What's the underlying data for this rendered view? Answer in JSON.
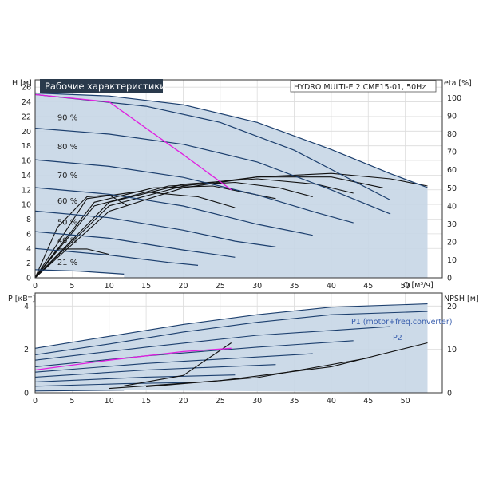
{
  "chart_data": [
    {
      "type": "line",
      "title": "Рабочие характеристики",
      "subtitle": "HYDRO MULTI-E 2 CME15-01, 50Hz",
      "xlabel": "Q [м³/ч]",
      "ylabel": "H [м]",
      "y2label": "eta [%]",
      "xlim": [
        0,
        55
      ],
      "ylim": [
        0,
        27
      ],
      "y2lim": [
        0,
        110
      ],
      "x_ticks": [
        0,
        5,
        10,
        15,
        20,
        25,
        30,
        35,
        40,
        45,
        50
      ],
      "y_ticks": [
        0,
        2,
        4,
        6,
        8,
        10,
        12,
        14,
        16,
        18,
        20,
        22,
        24,
        26
      ],
      "y2_ticks": [
        0,
        10,
        20,
        30,
        40,
        50,
        60,
        70,
        80,
        90,
        100
      ],
      "grid": true,
      "curve_labels": [
        "100 %",
        "90 %",
        "80 %",
        "70 %",
        "60 %",
        "50 %",
        "40 %",
        "21 %"
      ],
      "head_curves": [
        {
          "speed": 100,
          "points": [
            [
              0,
              25.2
            ],
            [
              10,
              24.8
            ],
            [
              20,
              23.6
            ],
            [
              30,
              21.2
            ],
            [
              40,
              17.5
            ],
            [
              48,
              14.2
            ],
            [
              53,
              12.3
            ]
          ]
        },
        {
          "speed": 100,
          "points": [
            [
              0,
              25.0
            ],
            [
              15,
              23.4
            ],
            [
              25,
              21.2
            ],
            [
              35,
              17.4
            ],
            [
              48,
              10.6
            ]
          ]
        },
        {
          "speed": 90,
          "points": [
            [
              0,
              20.4
            ],
            [
              10,
              19.6
            ],
            [
              20,
              18.2
            ],
            [
              30,
              15.8
            ],
            [
              40,
              12.0
            ],
            [
              48,
              8.7
            ]
          ]
        },
        {
          "speed": 80,
          "points": [
            [
              0,
              16.1
            ],
            [
              10,
              15.2
            ],
            [
              20,
              13.7
            ],
            [
              30,
              11.3
            ],
            [
              38,
              8.9
            ],
            [
              43,
              7.5
            ]
          ]
        },
        {
          "speed": 70,
          "points": [
            [
              0,
              12.3
            ],
            [
              10,
              11.4
            ],
            [
              20,
              9.8
            ],
            [
              30,
              7.3
            ],
            [
              37.5,
              5.8
            ]
          ]
        },
        {
          "speed": 60,
          "points": [
            [
              0,
              9.1
            ],
            [
              10,
              8.2
            ],
            [
              20,
              6.5
            ],
            [
              27,
              5.0
            ],
            [
              32.5,
              4.2
            ]
          ]
        },
        {
          "speed": 50,
          "points": [
            [
              0,
              6.3
            ],
            [
              10,
              5.4
            ],
            [
              20,
              3.8
            ],
            [
              27,
              2.8
            ]
          ]
        },
        {
          "speed": 40,
          "points": [
            [
              0,
              4.0
            ],
            [
              10,
              3.1
            ],
            [
              18,
              2.1
            ],
            [
              22,
              1.7
            ]
          ]
        },
        {
          "speed": 21,
          "points": [
            [
              0,
              1.1
            ],
            [
              6,
              0.9
            ],
            [
              12,
              0.5
            ]
          ]
        }
      ],
      "efficiency_curves": [
        {
          "points": [
            [
              0,
              0
            ],
            [
              10,
              37
            ],
            [
              20,
              50
            ],
            [
              30,
              56
            ],
            [
              40,
              58
            ],
            [
              48,
              55
            ],
            [
              53,
              51
            ]
          ]
        },
        {
          "points": [
            [
              0,
              0
            ],
            [
              10,
              40
            ],
            [
              20,
              51
            ],
            [
              30,
              56
            ],
            [
              40,
              56
            ],
            [
              47,
              50
            ]
          ]
        },
        {
          "points": [
            [
              0,
              0
            ],
            [
              10,
              42
            ],
            [
              20,
              52
            ],
            [
              30,
              55
            ],
            [
              38,
              52
            ],
            [
              43,
              47
            ]
          ]
        },
        {
          "points": [
            [
              0,
              0
            ],
            [
              8,
              40
            ],
            [
              18,
              51
            ],
            [
              27,
              53
            ],
            [
              33,
              50
            ],
            [
              37.5,
              45
            ]
          ]
        },
        {
          "points": [
            [
              0,
              0
            ],
            [
              8,
              42
            ],
            [
              16,
              50
            ],
            [
              24,
              51
            ],
            [
              32.5,
              44
            ]
          ]
        },
        {
          "points": [
            [
              0,
              0
            ],
            [
              7,
              44
            ],
            [
              14,
              48
            ],
            [
              22,
              45
            ],
            [
              27,
              39
            ]
          ]
        },
        {
          "points": [
            [
              0,
              0
            ],
            [
              3,
              28
            ],
            [
              7,
              45
            ],
            [
              10,
              46
            ],
            [
              12.5,
              40
            ]
          ]
        },
        {
          "points": [
            [
              0,
              0
            ],
            [
              3,
              16
            ],
            [
              7,
              16
            ],
            [
              10,
              13
            ]
          ]
        }
      ],
      "highlight_curve": {
        "color": "#e020e0",
        "points": [
          [
            0,
            25.0
          ],
          [
            10,
            24.0
          ],
          [
            20,
            16.8
          ],
          [
            26.5,
            12.0
          ]
        ]
      },
      "envelope_color": "#c6d6e6",
      "curve_color": "#1c3f6e"
    },
    {
      "type": "line",
      "ylabel": "P [кВт]",
      "y2label": "NPSH [м]",
      "xlim": [
        0,
        55
      ],
      "ylim": [
        0,
        4.6
      ],
      "y2lim": [
        0,
        23
      ],
      "y_ticks": [
        0,
        2,
        4
      ],
      "y2_ticks": [
        0,
        10,
        20
      ],
      "grid": true,
      "legend": [
        "P1 (motor+freq.converter)",
        "P2"
      ],
      "power_curves": [
        {
          "name": "P1 (motor+freq.converter)",
          "points": [
            [
              0,
              2.05
            ],
            [
              10,
              2.6
            ],
            [
              20,
              3.15
            ],
            [
              30,
              3.6
            ],
            [
              40,
              3.95
            ],
            [
              53,
              4.1
            ]
          ]
        },
        {
          "name": "P2",
          "points": [
            [
              0,
              1.75
            ],
            [
              10,
              2.25
            ],
            [
              20,
              2.8
            ],
            [
              30,
              3.25
            ],
            [
              40,
              3.6
            ],
            [
              53,
              3.75
            ]
          ]
        },
        {
          "points": [
            [
              0,
              1.5
            ],
            [
              15,
              2.1
            ],
            [
              30,
              2.65
            ],
            [
              48,
              3.05
            ]
          ]
        },
        {
          "points": [
            [
              0,
              1.2
            ],
            [
              15,
              1.7
            ],
            [
              30,
              2.1
            ],
            [
              43,
              2.4
            ]
          ]
        },
        {
          "points": [
            [
              0,
              0.95
            ],
            [
              15,
              1.35
            ],
            [
              30,
              1.65
            ],
            [
              37.5,
              1.8
            ]
          ]
        },
        {
          "points": [
            [
              0,
              0.72
            ],
            [
              15,
              1.05
            ],
            [
              32.5,
              1.3
            ]
          ]
        },
        {
          "points": [
            [
              0,
              0.5
            ],
            [
              15,
              0.72
            ],
            [
              27,
              0.82
            ]
          ]
        },
        {
          "points": [
            [
              0,
              0.3
            ],
            [
              12,
              0.42
            ],
            [
              22,
              0.48
            ]
          ]
        },
        {
          "points": [
            [
              0,
              0.08
            ],
            [
              12,
              0.12
            ]
          ]
        }
      ],
      "npsh_curves": [
        {
          "points": [
            [
              10,
              1.0
            ],
            [
              25,
              2.8
            ],
            [
              40,
              6.0
            ],
            [
              53,
              11.5
            ]
          ]
        },
        {
          "points": [
            [
              15,
              1.4
            ],
            [
              30,
              3.5
            ],
            [
              45,
              8.0
            ]
          ]
        },
        {
          "points": [
            [
              12,
              1.6
            ],
            [
              20,
              4.0
            ],
            [
              26.5,
              11.5
            ]
          ]
        }
      ],
      "highlight_curve": {
        "color": "#e020e0",
        "points": [
          [
            0,
            1.05
          ],
          [
            10,
            1.5
          ],
          [
            20,
            1.9
          ],
          [
            26.5,
            2.05
          ]
        ]
      }
    }
  ]
}
